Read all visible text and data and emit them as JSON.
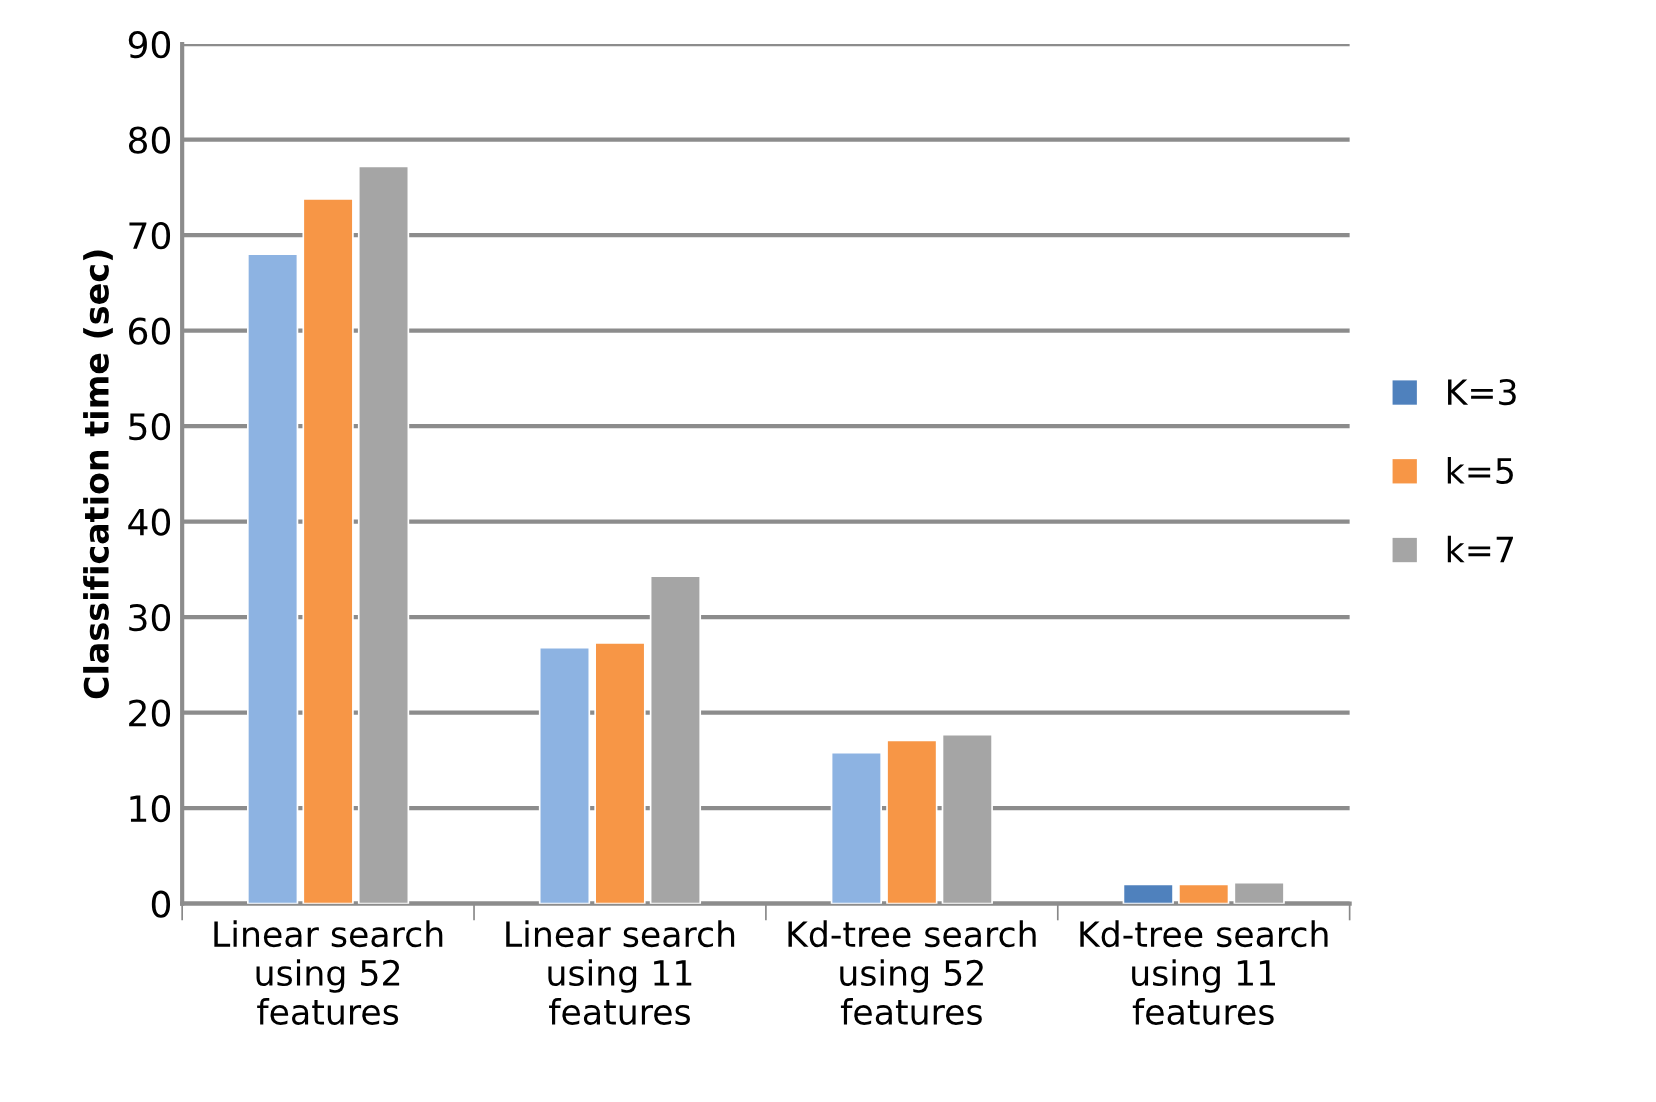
{
  "chart_data": {
    "type": "bar",
    "ylabel": "Classification time (sec)",
    "categories": [
      "Linear search\nusing 52\nfeatures",
      "Linear search\nusing 11\nfeatures",
      "Kd-tree search\nusing 52\nfeatures",
      "Kd-tree search\nusing 11\nfeatures"
    ],
    "series": [
      {
        "name": "K=3",
        "color": "#4f81bd",
        "colors": [
          "#8db3e2",
          "#8db3e2",
          "#8db3e2",
          "#4f81bd"
        ],
        "values": [
          68,
          26.8,
          15.8,
          2.0
        ]
      },
      {
        "name": "k=5",
        "color": "#f79646",
        "values": [
          73.8,
          27.3,
          17.1,
          2.0
        ]
      },
      {
        "name": "k=7",
        "color": "#a5a5a5",
        "values": [
          77.2,
          34.3,
          17.7,
          2.2
        ]
      }
    ],
    "ylim": [
      0,
      90
    ],
    "yticks": [
      0,
      10,
      20,
      30,
      40,
      50,
      60,
      70,
      80,
      90
    ],
    "grid": "y",
    "legend": "right"
  }
}
